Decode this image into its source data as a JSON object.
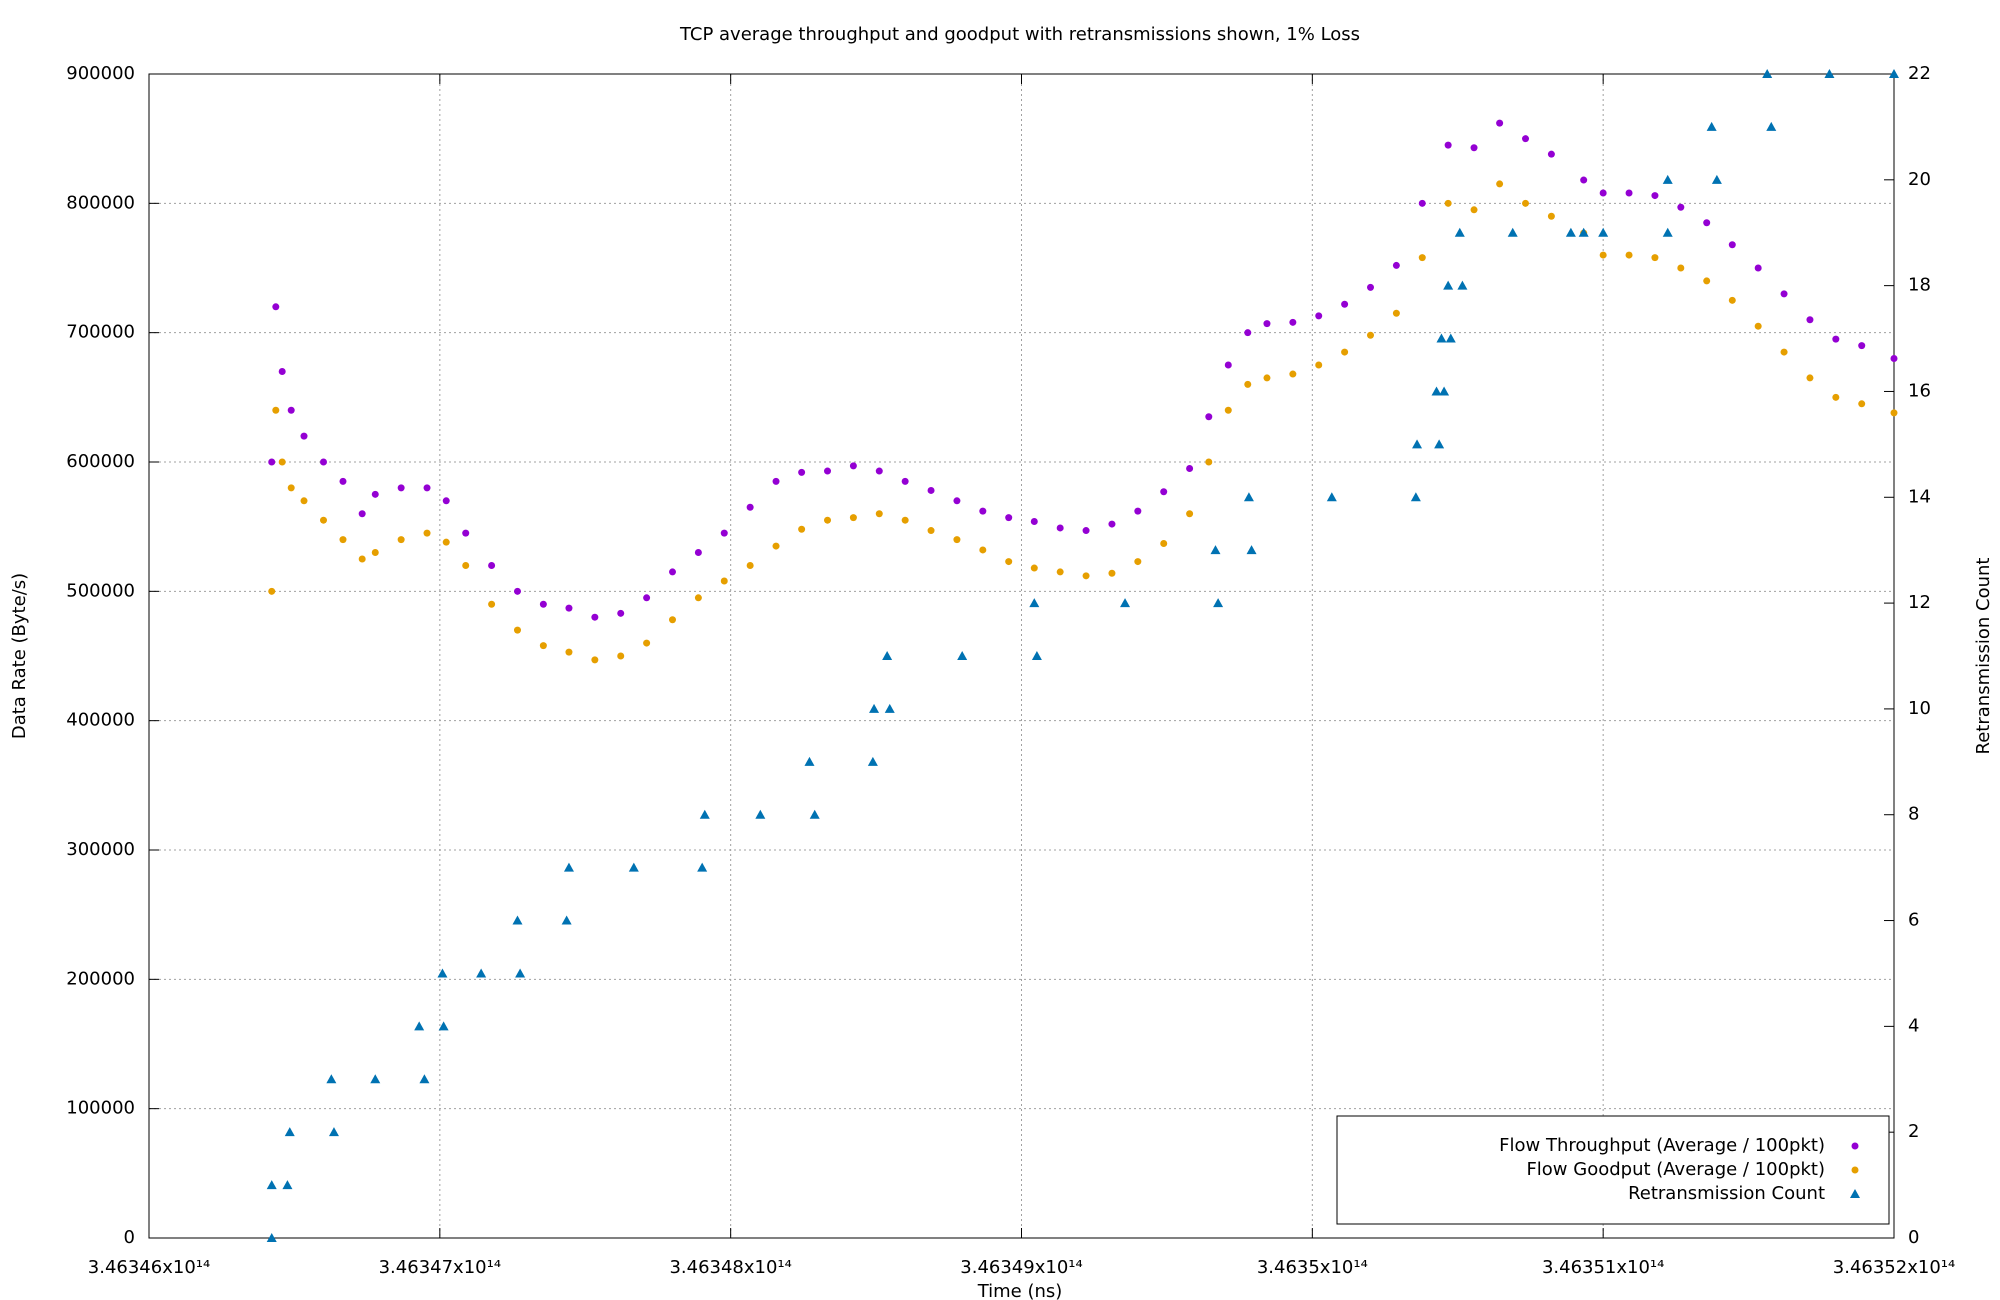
{
  "chart_data": {
    "type": "scatter",
    "title": "TCP average throughput and goodput with retransmissions shown, 1% Loss",
    "x_label": "Time (ns)",
    "y_label": "Data Rate (Byte/s)",
    "y2_label": "Retransmission Count",
    "xlim": [
      346346000000000,
      346352000000000
    ],
    "xticks": [
      {
        "value": 346346000000000,
        "label": "3.46346x10¹⁴"
      },
      {
        "value": 346347000000000,
        "label": "3.46347x10¹⁴"
      },
      {
        "value": 346348000000000,
        "label": "3.46348x10¹⁴"
      },
      {
        "value": 346349000000000,
        "label": "3.46349x10¹⁴"
      },
      {
        "value": 346350000000000,
        "label": "3.4635x10¹⁴"
      },
      {
        "value": 346351000000000,
        "label": "3.46351x10¹⁴"
      },
      {
        "value": 346352000000000,
        "label": "3.46352x10¹⁴"
      }
    ],
    "ylim": [
      0,
      900000
    ],
    "yticks": [
      0,
      100000,
      200000,
      300000,
      400000,
      500000,
      600000,
      700000,
      800000,
      900000
    ],
    "y2lim": [
      0,
      22
    ],
    "y2ticks": [
      0,
      2,
      4,
      6,
      8,
      10,
      12,
      14,
      16,
      18,
      20,
      22
    ],
    "grid": true,
    "legend": "bottom right",
    "series": [
      {
        "name": "Flow Throughput (Average / 100pkt)",
        "color": "#9400d3",
        "marker": "circle",
        "x": [
          346346422000000,
          346346436000000,
          346346458000000,
          346346489000000,
          346346533000000,
          346346600000000,
          346346667000000,
          346346733000000,
          346346778000000,
          346346867000000,
          346346956000000,
          346347022000000,
          346347089000000,
          346347178000000,
          346347267000000,
          346347356000000,
          346347444000000,
          346347533000000,
          346347622000000,
          346347711000000,
          346347800000000,
          346347889000000,
          346347978000000,
          346348067000000,
          346348156000000,
          346348244000000,
          346348333000000,
          346348422000000,
          346348511000000,
          346348600000000,
          346348689000000,
          346348778000000,
          346348867000000,
          346348956000000,
          346349044000000,
          346349133000000,
          346349222000000,
          346349311000000,
          346349400000000,
          346349489000000,
          346349578000000,
          346349644000000,
          346349711000000,
          346349778000000,
          346349844000000,
          346349933000000,
          346350022000000,
          346350111000000,
          346350200000000,
          346350289000000,
          346350378000000,
          346350467000000,
          346350556000000,
          346350644000000,
          346350733000000,
          346350822000000,
          346350933000000,
          346351000000000,
          346351089000000,
          346351178000000,
          346351267000000,
          346351356000000,
          346351444000000,
          346351533000000,
          346351622000000,
          346351711000000,
          346351800000000,
          346351889000000,
          346352000000000
        ],
        "values": [
          600000,
          720000,
          670000,
          640000,
          620000,
          600000,
          585000,
          560000,
          575000,
          580000,
          580000,
          570000,
          545000,
          520000,
          500000,
          490000,
          487000,
          480000,
          483000,
          495000,
          515000,
          530000,
          545000,
          565000,
          585000,
          592000,
          593000,
          597000,
          593000,
          585000,
          578000,
          570000,
          562000,
          557000,
          554000,
          549000,
          547000,
          552000,
          562000,
          577000,
          595000,
          635000,
          675000,
          700000,
          707000,
          708000,
          713000,
          722000,
          735000,
          752000,
          800000,
          845000,
          843000,
          862000,
          850000,
          838000,
          818000,
          808000,
          808000,
          806000,
          797000,
          785000,
          768000,
          750000,
          730000,
          710000,
          695000,
          690000,
          680000
        ]
      },
      {
        "name": "Flow Goodput (Average / 100pkt)",
        "color": "#e69f00",
        "marker": "circle",
        "x": [
          346346422000000,
          346346436000000,
          346346458000000,
          346346489000000,
          346346533000000,
          346346600000000,
          346346667000000,
          346346733000000,
          346346778000000,
          346346867000000,
          346346956000000,
          346347022000000,
          346347089000000,
          346347178000000,
          346347267000000,
          346347356000000,
          346347444000000,
          346347533000000,
          346347622000000,
          346347711000000,
          346347800000000,
          346347889000000,
          346347978000000,
          346348067000000,
          346348156000000,
          346348244000000,
          346348333000000,
          346348422000000,
          346348511000000,
          346348600000000,
          346348689000000,
          346348778000000,
          346348867000000,
          346348956000000,
          346349044000000,
          346349133000000,
          346349222000000,
          346349311000000,
          346349400000000,
          346349489000000,
          346349578000000,
          346349644000000,
          346349711000000,
          346349778000000,
          346349844000000,
          346349933000000,
          346350022000000,
          346350111000000,
          346350200000000,
          346350289000000,
          346350378000000,
          346350467000000,
          346350556000000,
          346350644000000,
          346350733000000,
          346350822000000,
          346350933000000,
          346351000000000,
          346351089000000,
          346351178000000,
          346351267000000,
          346351356000000,
          346351444000000,
          346351533000000,
          346351622000000,
          346351711000000,
          346351800000000,
          346351889000000,
          346352000000000
        ],
        "values": [
          500000,
          640000,
          600000,
          580000,
          570000,
          555000,
          540000,
          525000,
          530000,
          540000,
          545000,
          538000,
          520000,
          490000,
          470000,
          458000,
          453000,
          447000,
          450000,
          460000,
          478000,
          495000,
          508000,
          520000,
          535000,
          548000,
          555000,
          557000,
          560000,
          555000,
          547000,
          540000,
          532000,
          523000,
          518000,
          515000,
          512000,
          514000,
          523000,
          537000,
          560000,
          600000,
          640000,
          660000,
          665000,
          668000,
          675000,
          685000,
          698000,
          715000,
          758000,
          800000,
          795000,
          815000,
          800000,
          790000,
          777000,
          760000,
          760000,
          758000,
          750000,
          740000,
          725000,
          705000,
          685000,
          665000,
          650000,
          645000,
          638000
        ]
      },
      {
        "name": "Retransmission Count",
        "color": "#0072b2",
        "marker": "triangle",
        "axis": "y2",
        "x": [
          346346422000000,
          346346422000000,
          346346476000000,
          346346484000000,
          346346636000000,
          346346627000000,
          346346778000000,
          346346947000000,
          346346929000000,
          346347013000000,
          346347009000000,
          346347142000000,
          346347276000000,
          346347267000000,
          346347436000000,
          346347444000000,
          346347667000000,
          346347902000000,
          346347911000000,
          346348102000000,
          346348289000000,
          346348271000000,
          346348489000000,
          346348493000000,
          346348547000000,
          346348538000000,
          346348796000000,
          346349053000000,
          346349044000000,
          346349356000000,
          346349676000000,
          346349667000000,
          346349791000000,
          346349782000000,
          346350067000000,
          346350356000000,
          346350360000000,
          346350436000000,
          346350427000000,
          346350453000000,
          346350444000000,
          346350476000000,
          346350467000000,
          346350516000000,
          346350507000000,
          346350689000000,
          346350889000000,
          346350933000000,
          346351000000000,
          346351222000000,
          346351222000000,
          346351391000000,
          346351373000000,
          346351578000000,
          346351564000000,
          346351778000000,
          346352000000000
        ],
        "values": [
          0,
          1,
          1,
          2,
          2,
          3,
          3,
          3,
          4,
          4,
          5,
          5,
          5,
          6,
          6,
          7,
          7,
          7,
          8,
          8,
          8,
          9,
          9,
          10,
          10,
          11,
          11,
          11,
          12,
          12,
          12,
          13,
          13,
          14,
          14,
          14,
          15,
          15,
          16,
          16,
          17,
          17,
          18,
          18,
          19,
          19,
          19,
          19,
          19,
          19,
          20,
          20,
          21,
          21,
          22,
          22,
          22
        ]
      }
    ]
  }
}
